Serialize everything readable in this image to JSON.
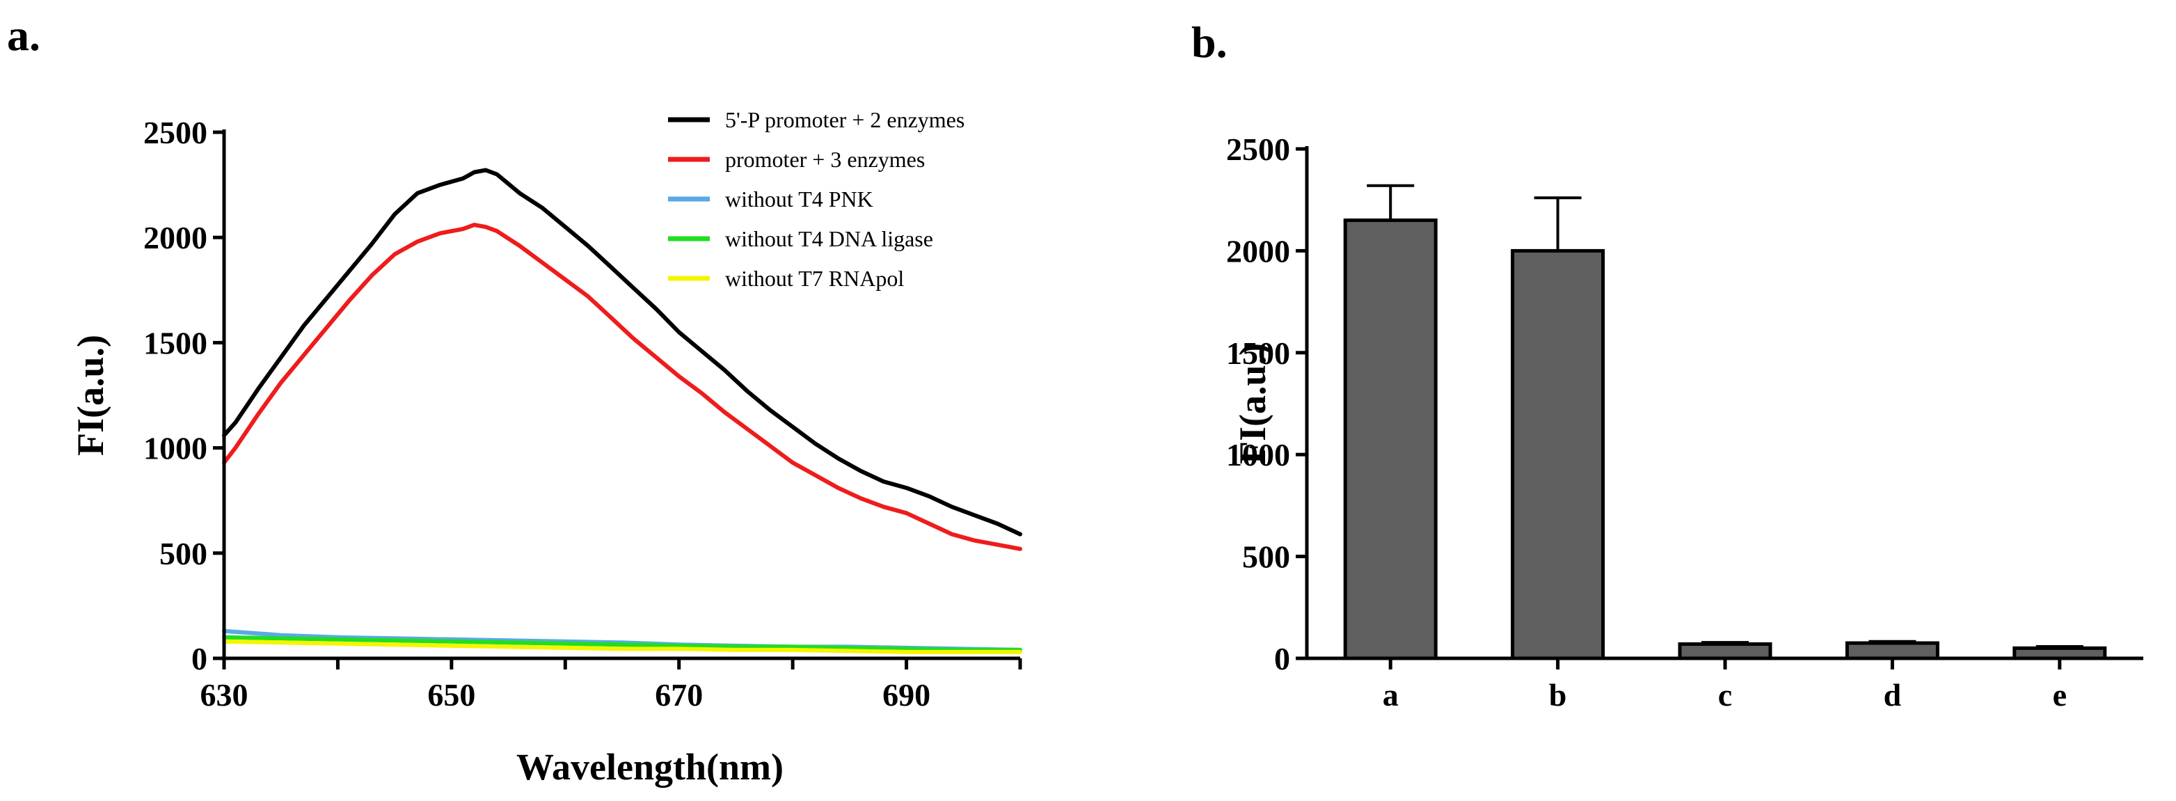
{
  "panel_labels": [
    "a.",
    "b."
  ],
  "chart_data": [
    {
      "type": "line",
      "panel": "a.",
      "title": "",
      "xlabel": "Wavelength(nm)",
      "ylabel": "FI(a.u.)",
      "xlim": [
        630,
        700
      ],
      "ylim": [
        0,
        2500
      ],
      "xticks": [
        630,
        650,
        670,
        690
      ],
      "yticks": [
        0,
        500,
        1000,
        1500,
        2000,
        2500
      ],
      "legend_position": "top-right",
      "series": [
        {
          "name": "5'-P promoter + 2 enzymes",
          "color": "#000000",
          "x": [
            630,
            631,
            633,
            635,
            637,
            639,
            641,
            643,
            645,
            647,
            649,
            651,
            652,
            653,
            654,
            656,
            658,
            660,
            662,
            664,
            666,
            668,
            670,
            672,
            674,
            676,
            678,
            680,
            682,
            684,
            686,
            688,
            690,
            692,
            694,
            696,
            698,
            700
          ],
          "y": [
            1060,
            1120,
            1280,
            1430,
            1580,
            1710,
            1840,
            1970,
            2110,
            2210,
            2250,
            2280,
            2310,
            2320,
            2300,
            2210,
            2140,
            2050,
            1960,
            1860,
            1760,
            1660,
            1550,
            1460,
            1370,
            1270,
            1180,
            1100,
            1020,
            950,
            890,
            840,
            810,
            770,
            720,
            680,
            640,
            590
          ]
        },
        {
          "name": "promoter + 3 enzymes",
          "color": "#ee1c1c",
          "x": [
            630,
            631,
            633,
            635,
            637,
            639,
            641,
            643,
            645,
            647,
            649,
            651,
            652,
            653,
            654,
            656,
            658,
            660,
            662,
            664,
            666,
            668,
            670,
            672,
            674,
            676,
            678,
            680,
            682,
            684,
            686,
            688,
            690,
            692,
            694,
            696,
            698,
            700
          ],
          "y": [
            930,
            1000,
            1160,
            1310,
            1440,
            1570,
            1700,
            1820,
            1920,
            1980,
            2020,
            2040,
            2060,
            2050,
            2030,
            1960,
            1880,
            1800,
            1720,
            1620,
            1520,
            1430,
            1340,
            1260,
            1170,
            1090,
            1010,
            930,
            870,
            810,
            760,
            720,
            690,
            640,
            590,
            560,
            540,
            520
          ]
        },
        {
          "name": "without T4 PNK",
          "color": "#5aa9e6",
          "x": [
            630,
            635,
            640,
            645,
            650,
            655,
            660,
            665,
            670,
            675,
            680,
            685,
            690,
            695,
            700
          ],
          "y": [
            130,
            110,
            100,
            95,
            90,
            85,
            80,
            75,
            65,
            60,
            55,
            55,
            50,
            45,
            40
          ]
        },
        {
          "name": "without T4 DNA ligase",
          "color": "#22dd22",
          "x": [
            630,
            635,
            640,
            645,
            650,
            655,
            660,
            665,
            670,
            675,
            680,
            685,
            690,
            695,
            700
          ],
          "y": [
            100,
            95,
            90,
            85,
            80,
            75,
            70,
            65,
            60,
            55,
            55,
            50,
            45,
            40,
            40
          ]
        },
        {
          "name": "without T7 RNApol",
          "color": "#f5f500",
          "x": [
            630,
            635,
            640,
            645,
            650,
            655,
            660,
            665,
            670,
            675,
            680,
            685,
            690,
            695,
            700
          ],
          "y": [
            80,
            75,
            70,
            65,
            60,
            55,
            50,
            45,
            45,
            40,
            40,
            35,
            30,
            30,
            30
          ]
        }
      ]
    },
    {
      "type": "bar",
      "panel": "b.",
      "title": "",
      "xlabel": "",
      "ylabel": "FI(a.u.)",
      "ylim": [
        0,
        2500
      ],
      "yticks": [
        0,
        500,
        1000,
        1500,
        2000,
        2500
      ],
      "bar_color": "#5f5f5f",
      "categories": [
        "a",
        "b",
        "c",
        "d",
        "e"
      ],
      "values": [
        2150,
        2000,
        70,
        75,
        50
      ],
      "errors": [
        170,
        260,
        8,
        8,
        8
      ]
    }
  ]
}
